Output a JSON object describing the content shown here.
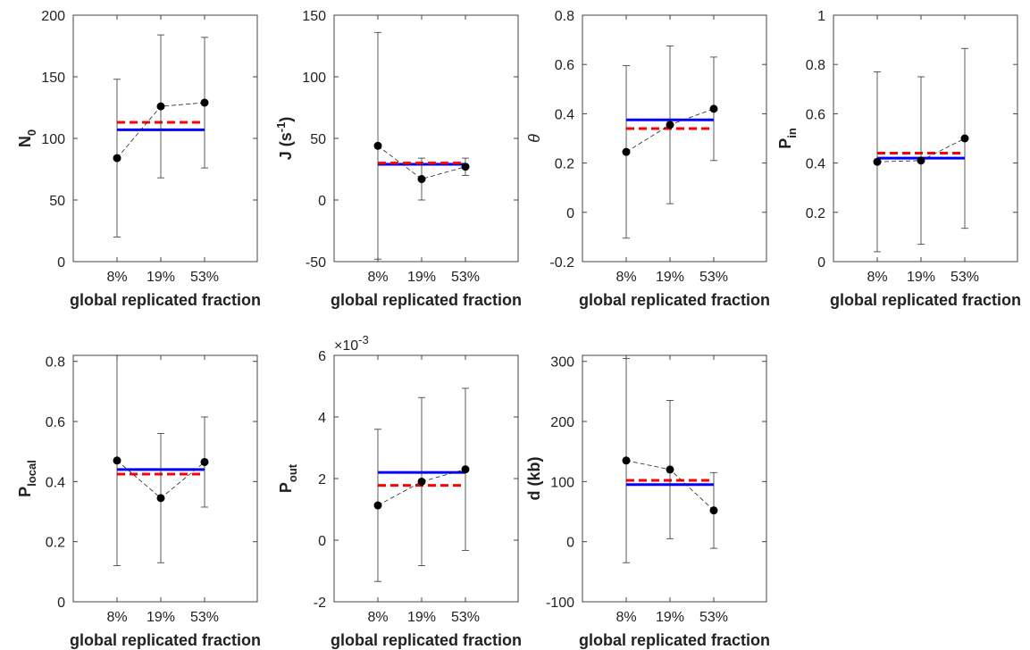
{
  "chart_data": [
    {
      "type": "errorbar",
      "ylabel": [
        "N",
        {
          "sub": "0"
        }
      ],
      "xlabel": "global replicated fraction",
      "categories": [
        "8%",
        "19%",
        "53%"
      ],
      "values": [
        84,
        126,
        129
      ],
      "errors": [
        64,
        58,
        53
      ],
      "reference_lines": [
        {
          "value": 107,
          "color": "#0000ff",
          "style": "solid"
        },
        {
          "value": 113,
          "color": "#ff0000",
          "style": "dashed"
        }
      ],
      "ylim": [
        0,
        200
      ],
      "yticks": [
        0,
        50,
        100,
        150,
        200
      ]
    },
    {
      "type": "errorbar",
      "ylabel": [
        "J (s",
        {
          "sup": "-1"
        },
        ")"
      ],
      "xlabel": "global replicated fraction",
      "categories": [
        "8%",
        "19%",
        "53%"
      ],
      "values": [
        44,
        17,
        27
      ],
      "errors": [
        92,
        17,
        7
      ],
      "reference_lines": [
        {
          "value": 29,
          "color": "#0000ff",
          "style": "solid"
        },
        {
          "value": 30,
          "color": "#ff0000",
          "style": "dashed"
        }
      ],
      "ylim": [
        -50,
        150
      ],
      "yticks": [
        -50,
        0,
        50,
        100,
        150
      ]
    },
    {
      "type": "errorbar",
      "ylabel": [
        {
          "italic": "θ"
        }
      ],
      "xlabel": "global replicated fraction",
      "categories": [
        "8%",
        "19%",
        "53%"
      ],
      "values": [
        0.245,
        0.355,
        0.42
      ],
      "errors": [
        0.35,
        0.32,
        0.21
      ],
      "reference_lines": [
        {
          "value": 0.375,
          "color": "#0000ff",
          "style": "solid"
        },
        {
          "value": 0.34,
          "color": "#ff0000",
          "style": "dashed"
        }
      ],
      "ylim": [
        -0.2,
        0.8
      ],
      "yticks": [
        -0.2,
        0,
        0.2,
        0.4,
        0.6,
        0.8
      ]
    },
    {
      "type": "errorbar",
      "ylabel": [
        "P",
        {
          "sub": "in"
        }
      ],
      "xlabel": "global replicated fraction",
      "categories": [
        "8%",
        "19%",
        "53%"
      ],
      "values": [
        0.405,
        0.41,
        0.5
      ],
      "errors": [
        0.365,
        0.34,
        0.365
      ],
      "reference_lines": [
        {
          "value": 0.42,
          "color": "#0000ff",
          "style": "solid"
        },
        {
          "value": 0.44,
          "color": "#ff0000",
          "style": "dashed"
        }
      ],
      "ylim": [
        0,
        1
      ],
      "yticks": [
        0,
        0.2,
        0.4,
        0.6,
        0.8,
        1
      ]
    },
    {
      "type": "errorbar",
      "ylabel": [
        "P",
        {
          "sub": "local"
        }
      ],
      "xlabel": "global replicated fraction",
      "categories": [
        "8%",
        "19%",
        "53%"
      ],
      "values": [
        0.47,
        0.345,
        0.465
      ],
      "errors": [
        0.35,
        0.215,
        0.15
      ],
      "reference_lines": [
        {
          "value": 0.44,
          "color": "#0000ff",
          "style": "solid"
        },
        {
          "value": 0.425,
          "color": "#ff0000",
          "style": "dashed"
        }
      ],
      "ylim": [
        0,
        0.82
      ],
      "yticks": [
        0,
        0.2,
        0.4,
        0.6,
        0.8
      ]
    },
    {
      "type": "errorbar",
      "ylabel": [
        "P",
        {
          "sub": "out"
        }
      ],
      "xlabel": "global replicated fraction",
      "y_multiplier": [
        "×10",
        {
          "sup": "-3"
        }
      ],
      "categories": [
        "8%",
        "19%",
        "53%"
      ],
      "values": [
        1.13,
        1.9,
        2.3
      ],
      "errors": [
        2.47,
        2.73,
        2.63
      ],
      "reference_lines": [
        {
          "value": 2.2,
          "color": "#0000ff",
          "style": "solid"
        },
        {
          "value": 1.78,
          "color": "#ff0000",
          "style": "dashed"
        }
      ],
      "ylim": [
        -2,
        6
      ],
      "yticks": [
        -2,
        0,
        2,
        4,
        6
      ]
    },
    {
      "type": "errorbar",
      "ylabel": "d (kb)",
      "xlabel": "global replicated fraction",
      "categories": [
        "8%",
        "19%",
        "53%"
      ],
      "values": [
        135,
        120,
        52
      ],
      "errors": [
        170,
        115,
        63
      ],
      "reference_lines": [
        {
          "value": 95,
          "color": "#0000ff",
          "style": "solid"
        },
        {
          "value": 102,
          "color": "#ff0000",
          "style": "dashed"
        }
      ],
      "ylim": [
        -100,
        310
      ],
      "yticks": [
        -100,
        0,
        100,
        200,
        300
      ]
    }
  ]
}
